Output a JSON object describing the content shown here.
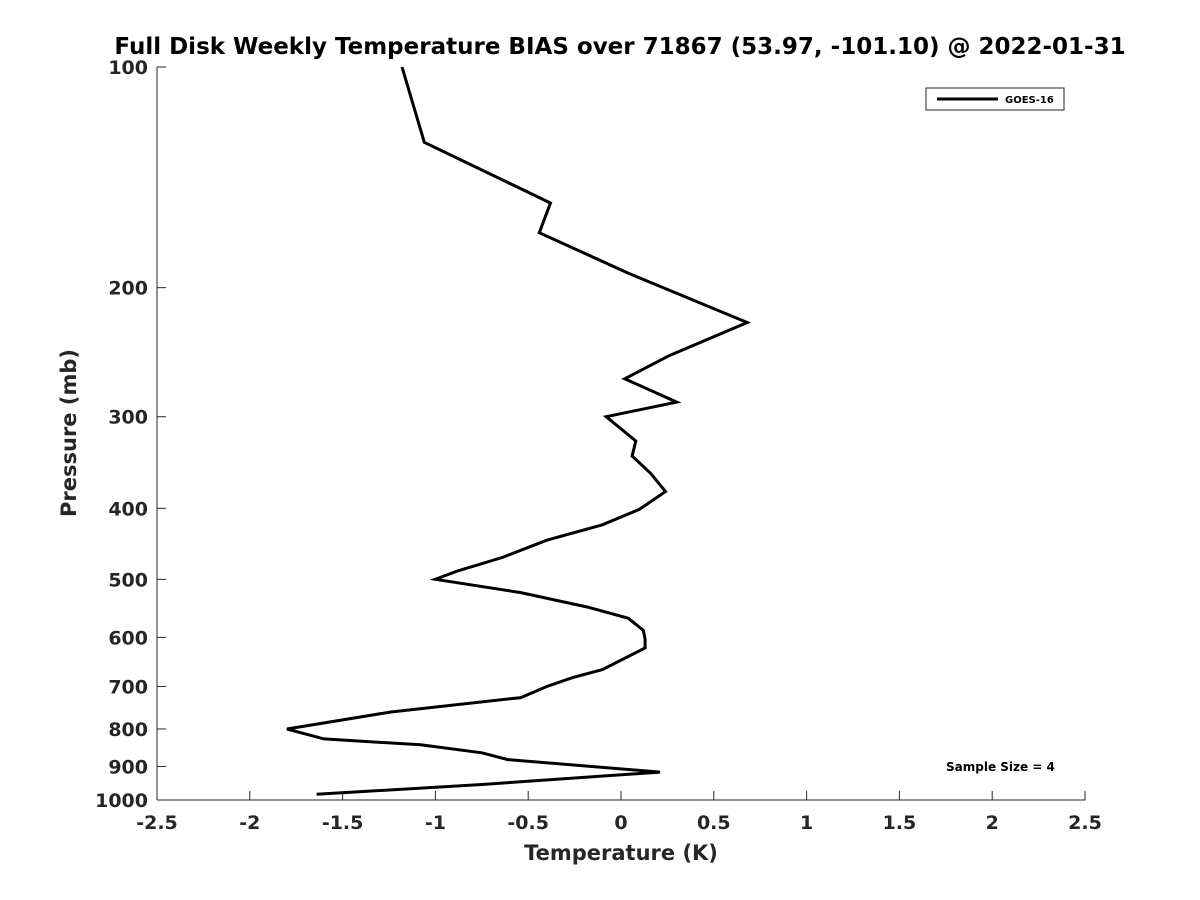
{
  "chart_data": {
    "type": "line",
    "title": "Full Disk Weekly Temperature BIAS over 71867 (53.97, -101.10) @ 2022-01-31",
    "xlabel": "Temperature (K)",
    "ylabel": "Pressure (mb)",
    "xlim": [
      -2.5,
      2.5
    ],
    "ylim": [
      100,
      1000
    ],
    "y_scale": "log",
    "y_reversed": true,
    "grid": false,
    "legend_position": "top-right",
    "x_ticks": [
      -2.5,
      -2,
      -1.5,
      -1,
      -0.5,
      0,
      0.5,
      1,
      1.5,
      2,
      2.5
    ],
    "x_tick_labels": [
      "-2.5",
      "-2",
      "-1.5",
      "-1",
      "-0.5",
      "0",
      "0.5",
      "1",
      "1.5",
      "2",
      "2.5"
    ],
    "y_ticks": [
      100,
      200,
      300,
      400,
      500,
      600,
      700,
      800,
      900,
      1000
    ],
    "y_tick_labels": [
      "100",
      "200",
      "300",
      "400",
      "500",
      "600",
      "700",
      "800",
      "900",
      "1000"
    ],
    "series": [
      {
        "name": "GOES-16",
        "color": "#000000",
        "points": [
          {
            "x": -1.18,
            "y": 100
          },
          {
            "x": -1.06,
            "y": 126.7
          },
          {
            "x": -0.38,
            "y": 153.3
          },
          {
            "x": -0.44,
            "y": 168.3
          },
          {
            "x": 0.04,
            "y": 191.1
          },
          {
            "x": 0.68,
            "y": 223.1
          },
          {
            "x": 0.26,
            "y": 247.6
          },
          {
            "x": 0.02,
            "y": 266.3
          },
          {
            "x": 0.3,
            "y": 286.5
          },
          {
            "x": -0.08,
            "y": 300
          },
          {
            "x": 0.08,
            "y": 323.8
          },
          {
            "x": 0.06,
            "y": 339.4
          },
          {
            "x": 0.16,
            "y": 358.5
          },
          {
            "x": 0.24,
            "y": 379.5
          },
          {
            "x": 0.1,
            "y": 401.1
          },
          {
            "x": -0.1,
            "y": 421.3
          },
          {
            "x": -0.4,
            "y": 442.2
          },
          {
            "x": -0.64,
            "y": 466.9
          },
          {
            "x": -0.88,
            "y": 486.9
          },
          {
            "x": -1.0,
            "y": 500
          },
          {
            "x": -0.54,
            "y": 521.2
          },
          {
            "x": -0.18,
            "y": 545.6
          },
          {
            "x": 0.04,
            "y": 565.1
          },
          {
            "x": 0.12,
            "y": 586.8
          },
          {
            "x": 0.13,
            "y": 603.5
          },
          {
            "x": 0.13,
            "y": 620.2
          },
          {
            "x": -0.1,
            "y": 663.9
          },
          {
            "x": -0.26,
            "y": 680.8
          },
          {
            "x": -0.4,
            "y": 700
          },
          {
            "x": -0.54,
            "y": 724.9
          },
          {
            "x": -1.24,
            "y": 758.6
          },
          {
            "x": -1.8,
            "y": 800
          },
          {
            "x": -1.6,
            "y": 825.4
          },
          {
            "x": -1.08,
            "y": 840.8
          },
          {
            "x": -0.75,
            "y": 862.2
          },
          {
            "x": -0.61,
            "y": 880.9
          },
          {
            "x": 0.21,
            "y": 916.2
          },
          {
            "x": -0.76,
            "y": 952.8
          },
          {
            "x": -1.64,
            "y": 982.3
          }
        ]
      }
    ],
    "annotations": [
      {
        "text": "Sample Size = 4"
      }
    ]
  }
}
